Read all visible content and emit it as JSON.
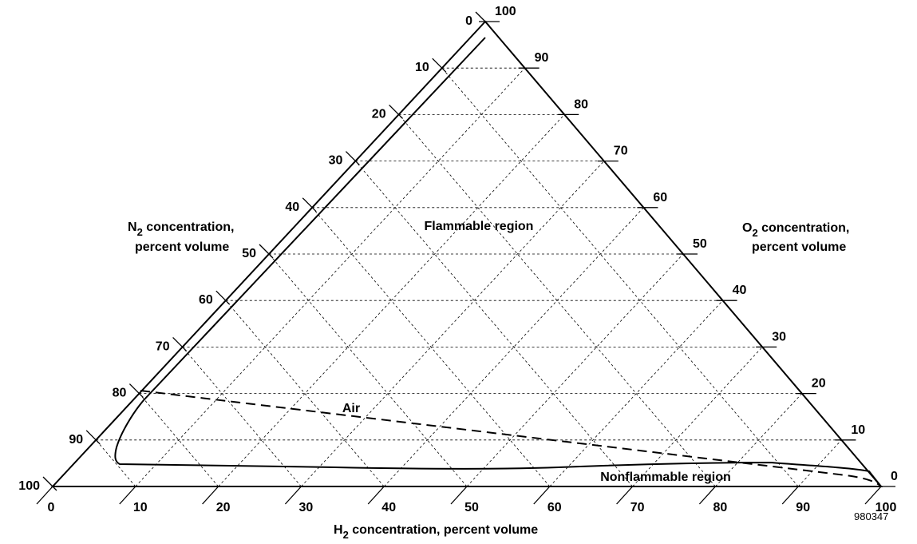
{
  "diagram": {
    "figure_id": "980347",
    "h2_axis": {
      "title_base": "H",
      "title_sub": "2",
      "title_rest": " concentration, percent volume",
      "ticks": [
        "0",
        "10",
        "20",
        "30",
        "40",
        "50",
        "60",
        "70",
        "80",
        "90",
        "100"
      ]
    },
    "n2_axis": {
      "title_base": "N",
      "title_sub": "2",
      "title_rest": " concentration,",
      "title_line2": "percent volume",
      "ticks": [
        "0",
        "10",
        "20",
        "30",
        "40",
        "50",
        "60",
        "70",
        "80",
        "90",
        "100"
      ]
    },
    "o2_axis": {
      "title_base": "O",
      "title_sub": "2",
      "title_rest": " concentration,",
      "title_line2": "percent volume",
      "ticks": [
        "0",
        "10",
        "20",
        "30",
        "40",
        "50",
        "60",
        "70",
        "80",
        "90",
        "100"
      ]
    },
    "regions": {
      "flammable": "Flammable region",
      "nonflammable": "Nonflammable region",
      "air": "Air"
    },
    "air_line": {
      "from": {
        "h2": 0,
        "o2": 21,
        "n2": 79
      },
      "to": {
        "h2": 100,
        "o2": 0,
        "n2": 0
      }
    },
    "flammability_boundary": [
      {
        "h2": 4,
        "o2": 96,
        "n2": 0
      },
      {
        "h2": 4,
        "o2": 5,
        "n2": 91
      },
      {
        "h2": 75,
        "o2": 5,
        "n2": 20
      },
      {
        "h2": 95,
        "o2": 5,
        "n2": 0
      }
    ]
  }
}
